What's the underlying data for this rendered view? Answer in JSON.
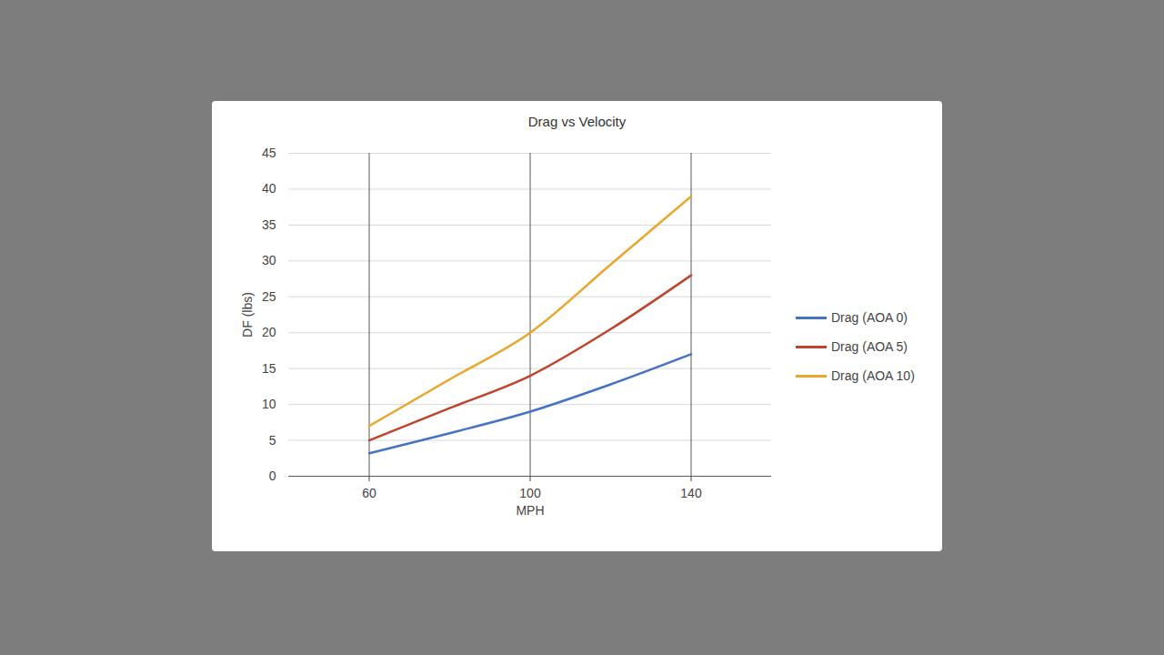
{
  "chart_data": {
    "type": "line",
    "title": "Drag vs Velocity",
    "x_label": "MPH",
    "y_label": "DF (lbs)",
    "x": [
      60,
      80,
      100,
      120,
      140
    ],
    "series": [
      {
        "name": "Drag (AOA 0)",
        "color": "#4472c4",
        "values": [
          3.2,
          6,
          9,
          12.8,
          17
        ]
      },
      {
        "name": "Drag (AOA 5)",
        "color": "#c0432b",
        "values": [
          5,
          9.5,
          14,
          20.5,
          28
        ]
      },
      {
        "name": "Drag (AOA 10)",
        "color": "#eaa62a",
        "values": [
          7,
          13.5,
          20,
          29.5,
          39
        ]
      }
    ],
    "xlim": [
      40,
      160
    ],
    "xticks": [
      60,
      100,
      140
    ],
    "ylim": [
      0,
      45
    ],
    "yticks": [
      0,
      5,
      10,
      15,
      20,
      25,
      30,
      35,
      40,
      45
    ],
    "grid": true,
    "legend": "right"
  }
}
